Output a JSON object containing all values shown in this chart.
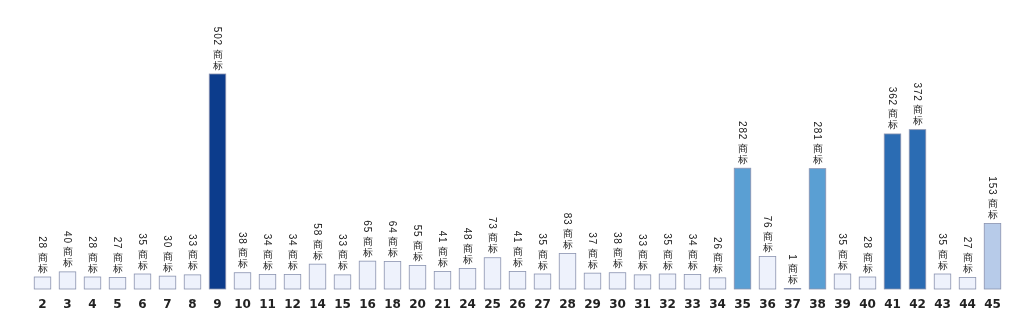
{
  "chart_data": {
    "type": "bar",
    "categories": [
      "2",
      "3",
      "4",
      "5",
      "6",
      "7",
      "8",
      "9",
      "10",
      "11",
      "12",
      "14",
      "15",
      "16",
      "18",
      "20",
      "21",
      "24",
      "25",
      "26",
      "27",
      "28",
      "29",
      "30",
      "31",
      "32",
      "33",
      "34",
      "35",
      "36",
      "37",
      "38",
      "39",
      "40",
      "41",
      "42",
      "43",
      "44",
      "45"
    ],
    "values": [
      28,
      40,
      28,
      27,
      35,
      30,
      33,
      502,
      38,
      34,
      34,
      58,
      33,
      65,
      64,
      55,
      41,
      48,
      73,
      41,
      35,
      83,
      37,
      38,
      33,
      35,
      34,
      26,
      282,
      76,
      1,
      281,
      35,
      28,
      362,
      372,
      35,
      27,
      153
    ],
    "colors": [
      "#eef2fc",
      "#eef2fc",
      "#eef2fc",
      "#eef2fc",
      "#eef2fc",
      "#eef2fc",
      "#eef2fc",
      "#0c3c8c",
      "#eef2fc",
      "#eef2fc",
      "#eef2fc",
      "#eef2fc",
      "#eef2fc",
      "#eef2fc",
      "#eef2fc",
      "#eef2fc",
      "#eef2fc",
      "#eef2fc",
      "#eef2fc",
      "#eef2fc",
      "#eef2fc",
      "#eef2fc",
      "#eef2fc",
      "#eef2fc",
      "#eef2fc",
      "#eef2fc",
      "#eef2fc",
      "#eef2fc",
      "#5a9fd3",
      "#eef2fc",
      "#eef2fc",
      "#5a9fd3",
      "#eef2fc",
      "#eef2fc",
      "#2b6cb3",
      "#2b6cb3",
      "#eef2fc",
      "#eef2fc",
      "#b7cbe9"
    ],
    "value_labels": [
      "28 商标",
      "40 商标",
      "28 商标",
      "27 商标",
      "35 商标",
      "30 商标",
      "33 商标",
      "502 商标",
      "38 商标",
      "34 商标",
      "34 商标",
      "58 商标",
      "33 商标",
      "65 商标",
      "64 商标",
      "55 商标",
      "41 商标",
      "48 商标",
      "73 商标",
      "41 商标",
      "35 商标",
      "83 商标",
      "37 商标",
      "38 商标",
      "33 商标",
      "35 商标",
      "34 商标",
      "26 商标",
      "282 商标",
      "76 商标",
      "1 商标",
      "281 商标",
      "35 商标",
      "28 商标",
      "362 商标",
      "372 商标",
      "35 商标",
      "27 商标",
      "153 商标"
    ]
  }
}
